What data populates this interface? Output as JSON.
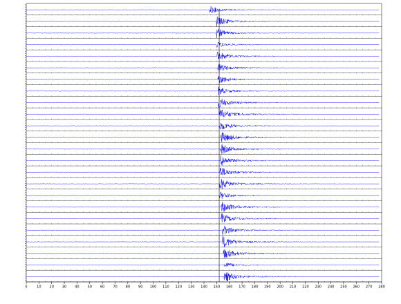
{
  "chart_data": {
    "type": "seismogram",
    "xlim": [
      0,
      280
    ],
    "xticks": [
      0,
      10,
      20,
      30,
      40,
      50,
      60,
      70,
      80,
      90,
      100,
      110,
      120,
      130,
      140,
      150,
      160,
      170,
      180,
      190,
      200,
      210,
      220,
      230,
      240,
      250,
      260,
      270,
      280
    ],
    "pick": 152,
    "color": "#0000ff",
    "traces": [
      {
        "arrival": 144.4,
        "amplitude": 0.6
      },
      {
        "arrival": 149.8,
        "amplitude": 0.8
      },
      {
        "arrival": 149.8,
        "amplitude": 0.7
      },
      {
        "arrival": 149.8,
        "amplitude": 0.5
      },
      {
        "arrival": 150.3,
        "amplitude": 0.8
      },
      {
        "arrival": 150.9,
        "amplitude": 0.7
      },
      {
        "arrival": 150.9,
        "amplitude": 0.7
      },
      {
        "arrival": 151.4,
        "amplitude": 0.6
      },
      {
        "arrival": 151.4,
        "amplitude": 0.8
      },
      {
        "arrival": 152.0,
        "amplitude": 0.9
      },
      {
        "arrival": 152.5,
        "amplitude": 0.7
      },
      {
        "arrival": 153.1,
        "amplitude": 0.9
      },
      {
        "arrival": 153.1,
        "amplitude": 0.8
      },
      {
        "arrival": 153.1,
        "amplitude": 0.8
      },
      {
        "arrival": 152.5,
        "amplitude": 0.8
      },
      {
        "arrival": 152.5,
        "amplitude": 0.9
      },
      {
        "arrival": 152.5,
        "amplitude": 0.6
      },
      {
        "arrival": 153.6,
        "amplitude": 0.9
      },
      {
        "arrival": 153.6,
        "amplitude": 0.8
      },
      {
        "arrival": 154.2,
        "amplitude": 0.8
      },
      {
        "arrival": 154.7,
        "amplitude": 0.9
      },
      {
        "arrival": 155.2,
        "amplitude": 0.9
      },
      {
        "arrival": 155.8,
        "amplitude": 0.5
      },
      {
        "arrival": 155.8,
        "amplitude": 0.9
      }
    ]
  }
}
